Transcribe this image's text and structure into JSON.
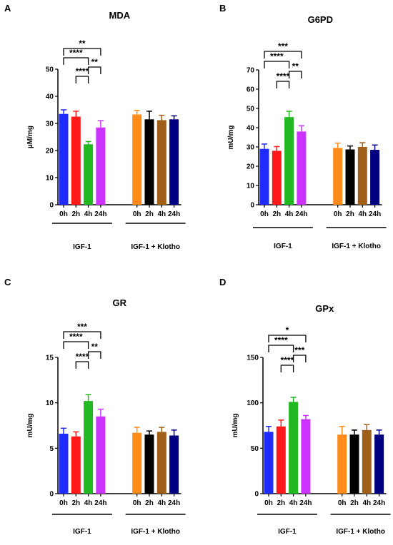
{
  "chart_data": [
    {
      "type": "bar",
      "panel": "A",
      "title": "MDA",
      "ylabel": "µM/mg",
      "ylim": [
        0,
        50
      ],
      "yticks": [
        0,
        10,
        20,
        30,
        40,
        50
      ],
      "categories": [
        "0h",
        "2h",
        "4h",
        "24h",
        "0h",
        "2h",
        "4h",
        "24h"
      ],
      "groups": [
        {
          "label": "IGF-1",
          "indices": [
            0,
            1,
            2,
            3
          ]
        },
        {
          "label": "IGF-1 + Klotho",
          "indices": [
            4,
            5,
            6,
            7
          ]
        }
      ],
      "values": [
        33.5,
        32.5,
        22.3,
        28.5,
        33.3,
        31.5,
        31.2,
        31.5
      ],
      "errors": [
        1.5,
        2.0,
        1.0,
        2.5,
        1.5,
        3.0,
        1.8,
        1.3
      ],
      "colors": [
        "#1f2bff",
        "#ff1a1a",
        "#22b822",
        "#cc33ff",
        "#ff8c1a",
        "#000000",
        "#a0601a",
        "#000080"
      ],
      "significance": [
        {
          "from": 0,
          "to": 3,
          "label": "**"
        },
        {
          "from": 0,
          "to": 2,
          "label": "****"
        },
        {
          "from": 2,
          "to": 3,
          "label": "**"
        },
        {
          "from": 1,
          "to": 2,
          "label": "****"
        }
      ]
    },
    {
      "type": "bar",
      "panel": "B",
      "title": "G6PD",
      "ylabel": "mU/mg",
      "ylim": [
        0,
        70
      ],
      "yticks": [
        0,
        10,
        20,
        30,
        40,
        50,
        60,
        70
      ],
      "categories": [
        "0h",
        "2h",
        "4h",
        "24h",
        "0h",
        "2h",
        "4h",
        "24h"
      ],
      "groups": [
        {
          "label": "IGF-1",
          "indices": [
            0,
            1,
            2,
            3
          ]
        },
        {
          "label": "IGF-1 + Klotho",
          "indices": [
            4,
            5,
            6,
            7
          ]
        }
      ],
      "values": [
        29,
        28,
        45.5,
        38,
        29.5,
        28.7,
        30,
        28.5
      ],
      "errors": [
        2.5,
        2.2,
        3.0,
        3.0,
        2.5,
        1.8,
        2.2,
        2.5
      ],
      "colors": [
        "#1f2bff",
        "#ff1a1a",
        "#22b822",
        "#cc33ff",
        "#ff8c1a",
        "#000000",
        "#a0601a",
        "#000080"
      ],
      "significance": [
        {
          "from": 0,
          "to": 3,
          "label": "***"
        },
        {
          "from": 0,
          "to": 2,
          "label": "****"
        },
        {
          "from": 2,
          "to": 3,
          "label": "**"
        },
        {
          "from": 1,
          "to": 2,
          "label": "****"
        }
      ]
    },
    {
      "type": "bar",
      "panel": "C",
      "title": "GR",
      "ylabel": "mU/mg",
      "ylim": [
        0,
        15
      ],
      "yticks": [
        0,
        5,
        10,
        15
      ],
      "categories": [
        "0h",
        "2h",
        "4h",
        "24h",
        "0h",
        "2h",
        "4h",
        "24h"
      ],
      "groups": [
        {
          "label": "IGF-1",
          "indices": [
            0,
            1,
            2,
            3
          ]
        },
        {
          "label": "IGF-1 + Klotho",
          "indices": [
            4,
            5,
            6,
            7
          ]
        }
      ],
      "values": [
        6.6,
        6.3,
        10.2,
        8.5,
        6.7,
        6.5,
        6.8,
        6.4
      ],
      "errors": [
        0.6,
        0.5,
        0.7,
        0.8,
        0.6,
        0.4,
        0.5,
        0.6
      ],
      "colors": [
        "#1f2bff",
        "#ff1a1a",
        "#22b822",
        "#cc33ff",
        "#ff8c1a",
        "#000000",
        "#a0601a",
        "#000080"
      ],
      "significance": [
        {
          "from": 0,
          "to": 3,
          "label": "***"
        },
        {
          "from": 0,
          "to": 2,
          "label": "****"
        },
        {
          "from": 2,
          "to": 3,
          "label": "**"
        },
        {
          "from": 1,
          "to": 2,
          "label": "****"
        }
      ]
    },
    {
      "type": "bar",
      "panel": "D",
      "title": "GPx",
      "ylabel": "mU/mg",
      "ylim": [
        0,
        150
      ],
      "yticks": [
        0,
        50,
        100,
        150
      ],
      "categories": [
        "0h",
        "2h",
        "4h",
        "24h",
        "0h",
        "2h",
        "4h",
        "24h"
      ],
      "groups": [
        {
          "label": "IGF-1",
          "indices": [
            0,
            1,
            2,
            3
          ]
        },
        {
          "label": "IGF-1 + Klotho",
          "indices": [
            4,
            5,
            6,
            7
          ]
        }
      ],
      "values": [
        68,
        74,
        101,
        82,
        65,
        65,
        70,
        65
      ],
      "errors": [
        6,
        7,
        5,
        4,
        9,
        5,
        6,
        5
      ],
      "colors": [
        "#1f2bff",
        "#ff1a1a",
        "#22b822",
        "#cc33ff",
        "#ff8c1a",
        "#000000",
        "#a0601a",
        "#000080"
      ],
      "significance": [
        {
          "from": 0,
          "to": 3,
          "label": "*"
        },
        {
          "from": 0,
          "to": 2,
          "label": "****"
        },
        {
          "from": 2,
          "to": 3,
          "label": "***"
        },
        {
          "from": 1,
          "to": 2,
          "label": "****"
        }
      ]
    }
  ]
}
